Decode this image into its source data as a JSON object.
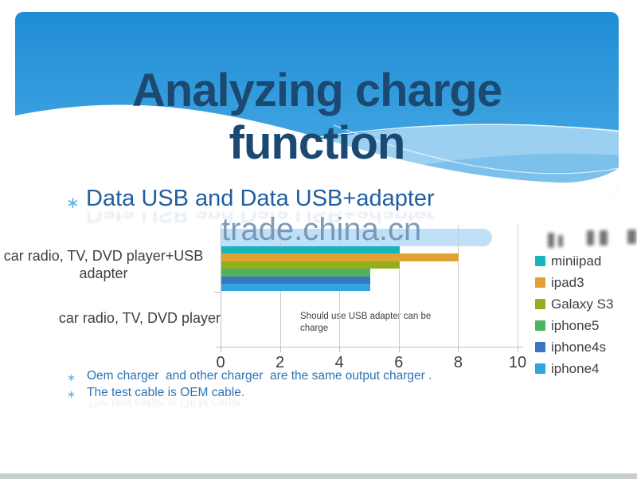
{
  "slide": {
    "title": {
      "line1": "Analyzing charge",
      "line2": "function"
    },
    "bullet": {
      "marker": "∗",
      "text": "Data USB and Data USB+adapter"
    },
    "notes": [
      {
        "marker": "∗",
        "text": "Oem charger  and other charger  are the same output charger ."
      },
      {
        "marker": "∗",
        "text": "The test cable is OEM cable."
      }
    ]
  },
  "watermark": {
    "text": "trade.china.cn"
  },
  "chart_data": {
    "type": "bar",
    "orientation": "horizontal",
    "title": "",
    "categories": [
      "car radio, TV, DVD player+USB adapter",
      "car radio, TV, DVD player"
    ],
    "series": [
      {
        "name": "miniipad",
        "color": "#18B5BE",
        "values": [
          6,
          0
        ]
      },
      {
        "name": "ipad3",
        "color": "#DFA233",
        "values": [
          8,
          0
        ]
      },
      {
        "name": "Galaxy S3",
        "color": "#92B01D",
        "values": [
          6,
          0
        ]
      },
      {
        "name": "iphone5",
        "color": "#4FB25F",
        "values": [
          5,
          0
        ]
      },
      {
        "name": "iphone4s",
        "color": "#3A76C0",
        "values": [
          5,
          0
        ]
      },
      {
        "name": "iphone4",
        "color": "#2FA4DF",
        "values": [
          5,
          0
        ]
      }
    ],
    "xlim": [
      0,
      10
    ],
    "xticks": [
      0,
      2,
      4,
      6,
      8,
      10
    ],
    "grid": true,
    "legend_position": "right",
    "annotation": "Should use USB adapter can be charge",
    "note": "category 2 has no visible bars (values are zero)"
  },
  "colors": {
    "header_top": "#1F8CD4",
    "header_bottom": "#4AAAE3",
    "title_text": "#1B4971",
    "bullet_text": "#1F5FA3",
    "bullet_marker": "#56B5E7",
    "note_text": "#2E73B4",
    "axis": "#BFBFBF",
    "chart_text": "#3F3F3F",
    "watermark_band": "#C0E0F8"
  }
}
